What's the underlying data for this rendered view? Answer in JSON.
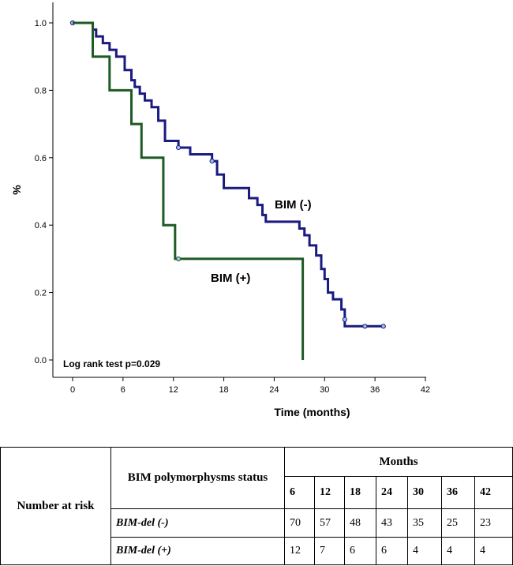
{
  "chart_data": {
    "type": "line",
    "xlabel": "Time (months)",
    "ylabel": "%",
    "xlim": [
      0,
      42
    ],
    "ylim": [
      0,
      1.0
    ],
    "x_ticks": [
      0,
      6,
      12,
      18,
      24,
      30,
      36,
      42
    ],
    "y_ticks": [
      "0.0",
      "0.2",
      "0.4",
      "0.6",
      "0.8",
      "1.0"
    ],
    "grid": false,
    "annotations": {
      "log_rank": "Log rank test p=0.029",
      "label_minus": "BIM (-)",
      "label_plus": "BIM (+)"
    },
    "series": [
      {
        "name": "BIM (-)",
        "color": "#1a1a80",
        "x": [
          0,
          2.4,
          2.8,
          3.6,
          4.4,
          5.2,
          6.2,
          7.0,
          7.4,
          8.0,
          8.6,
          9.4,
          10.2,
          11.0,
          12.0,
          12.6,
          13.6,
          14.0,
          15.0,
          16.0,
          16.6,
          17.2,
          18.0,
          20.0,
          21.0,
          22.0,
          22.6,
          23.0,
          25.0,
          27.0,
          27.6,
          28.2,
          29.0,
          29.6,
          30.0,
          30.4,
          31.0,
          32.0,
          32.4,
          37.0
        ],
        "y": [
          1.0,
          0.98,
          0.96,
          0.94,
          0.92,
          0.9,
          0.86,
          0.83,
          0.81,
          0.79,
          0.77,
          0.75,
          0.71,
          0.65,
          0.65,
          0.63,
          0.63,
          0.61,
          0.61,
          0.61,
          0.59,
          0.55,
          0.51,
          0.51,
          0.48,
          0.46,
          0.43,
          0.41,
          0.41,
          0.39,
          0.37,
          0.34,
          0.31,
          0.27,
          0.24,
          0.2,
          0.18,
          0.15,
          0.1,
          0.1
        ],
        "censored_x": [
          0,
          12.6,
          16.6,
          32.4,
          34.8,
          37.0
        ],
        "censored_y": [
          1.0,
          0.63,
          0.59,
          0.12,
          0.1,
          0.1
        ]
      },
      {
        "name": "BIM (+)",
        "color": "#1e5a24",
        "x": [
          0,
          2.4,
          4.4,
          7.0,
          8.2,
          10.8,
          12.2,
          27.4,
          27.4
        ],
        "y": [
          1.0,
          0.9,
          0.8,
          0.7,
          0.6,
          0.4,
          0.3,
          0.3,
          0.0
        ],
        "censored_x": [
          12.6
        ],
        "censored_y": [
          0.3
        ]
      }
    ]
  },
  "risk_table": {
    "row_label": "Number at risk",
    "status_header": "BIM polymorphysms status",
    "months_header": "Months",
    "months": [
      "6",
      "12",
      "18",
      "24",
      "30",
      "36",
      "42"
    ],
    "groups": [
      {
        "name": "BIM-del (-)",
        "values": [
          "70",
          "57",
          "48",
          "43",
          "35",
          "25",
          "23"
        ]
      },
      {
        "name": "BIM-del (+)",
        "values": [
          "12",
          "7",
          "6",
          "6",
          "4",
          "4",
          "4"
        ]
      }
    ]
  }
}
